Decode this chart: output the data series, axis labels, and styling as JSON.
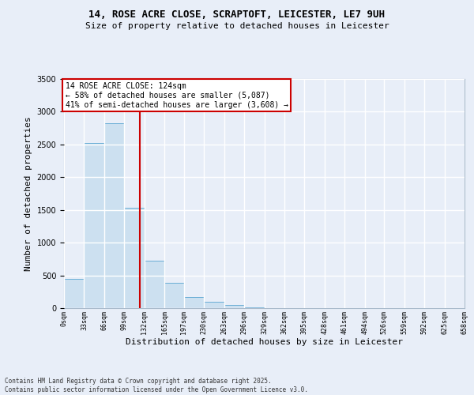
{
  "title1": "14, ROSE ACRE CLOSE, SCRAPTOFT, LEICESTER, LE7 9UH",
  "title2": "Size of property relative to detached houses in Leicester",
  "xlabel": "Distribution of detached houses by size in Leicester",
  "ylabel": "Number of detached properties",
  "bar_values": [
    450,
    2520,
    2820,
    1530,
    730,
    390,
    170,
    95,
    50,
    10,
    5,
    0,
    0,
    0,
    0,
    0,
    0,
    0,
    0,
    0
  ],
  "bin_edges": [
    0,
    33,
    66,
    99,
    132,
    165,
    197,
    230,
    263,
    296,
    329,
    362,
    395,
    428,
    461,
    494,
    526,
    559,
    592,
    625,
    658
  ],
  "bin_labels": [
    "0sqm",
    "33sqm",
    "66sqm",
    "99sqm",
    "132sqm",
    "165sqm",
    "197sqm",
    "230sqm",
    "263sqm",
    "296sqm",
    "329sqm",
    "362sqm",
    "395sqm",
    "428sqm",
    "461sqm",
    "494sqm",
    "526sqm",
    "559sqm",
    "592sqm",
    "625sqm",
    "658sqm"
  ],
  "bar_color": "#cce0f0",
  "bar_edge_color": "#6aaed6",
  "vline_x": 124,
  "vline_color": "#cc0000",
  "annotation_line1": "14 ROSE ACRE CLOSE: 124sqm",
  "annotation_line2": "← 58% of detached houses are smaller (5,087)",
  "annotation_line3": "41% of semi-detached houses are larger (3,608) →",
  "annotation_box_facecolor": "#ffffff",
  "annotation_box_edgecolor": "#cc0000",
  "ylim_max": 3500,
  "yticks": [
    0,
    500,
    1000,
    1500,
    2000,
    2500,
    3000,
    3500
  ],
  "background_color": "#e8eef8",
  "grid_color": "#d0d8e8",
  "footer1": "Contains HM Land Registry data © Crown copyright and database right 2025.",
  "footer2": "Contains public sector information licensed under the Open Government Licence v3.0."
}
